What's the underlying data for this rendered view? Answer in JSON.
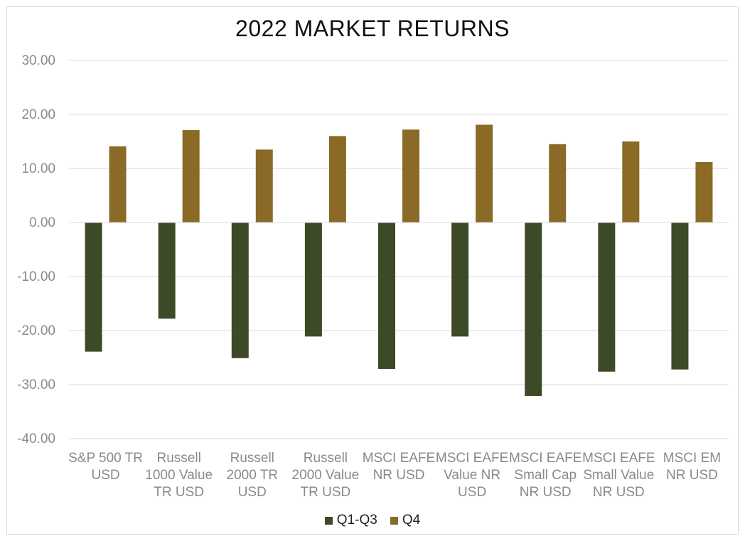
{
  "chart_data": {
    "type": "bar",
    "title": "2022 MARKET RETURNS",
    "categories": [
      [
        "S&P 500 TR",
        "USD"
      ],
      [
        "Russell",
        "1000 Value",
        "TR USD"
      ],
      [
        "Russell",
        "2000 TR",
        "USD"
      ],
      [
        "Russell",
        "2000 Value",
        "TR USD"
      ],
      [
        "MSCI EAFE",
        "NR USD"
      ],
      [
        "MSCI EAFE",
        "Value NR",
        "USD"
      ],
      [
        "MSCI EAFE",
        "Small Cap",
        "NR USD"
      ],
      [
        "MSCI EAFE",
        "Small Value",
        "NR USD"
      ],
      [
        "MSCI EM",
        "NR USD"
      ]
    ],
    "series": [
      {
        "name": "Q1-Q3",
        "color": "#3d4a28",
        "values": [
          -23.9,
          -17.8,
          -25.1,
          -21.1,
          -27.1,
          -21.1,
          -32.1,
          -27.6,
          -27.2
        ]
      },
      {
        "name": "Q4",
        "color": "#8a6a26",
        "values": [
          14.1,
          17.1,
          13.5,
          16.0,
          17.2,
          18.1,
          14.5,
          15.0,
          11.2
        ]
      }
    ],
    "ylim": [
      -40,
      30
    ],
    "yticks": [
      "30.00",
      "20.00",
      "10.00",
      "0.00",
      "-10.00",
      "-20.00",
      "-30.00",
      "-40.00"
    ],
    "grid": true,
    "legend_position": "bottom"
  }
}
